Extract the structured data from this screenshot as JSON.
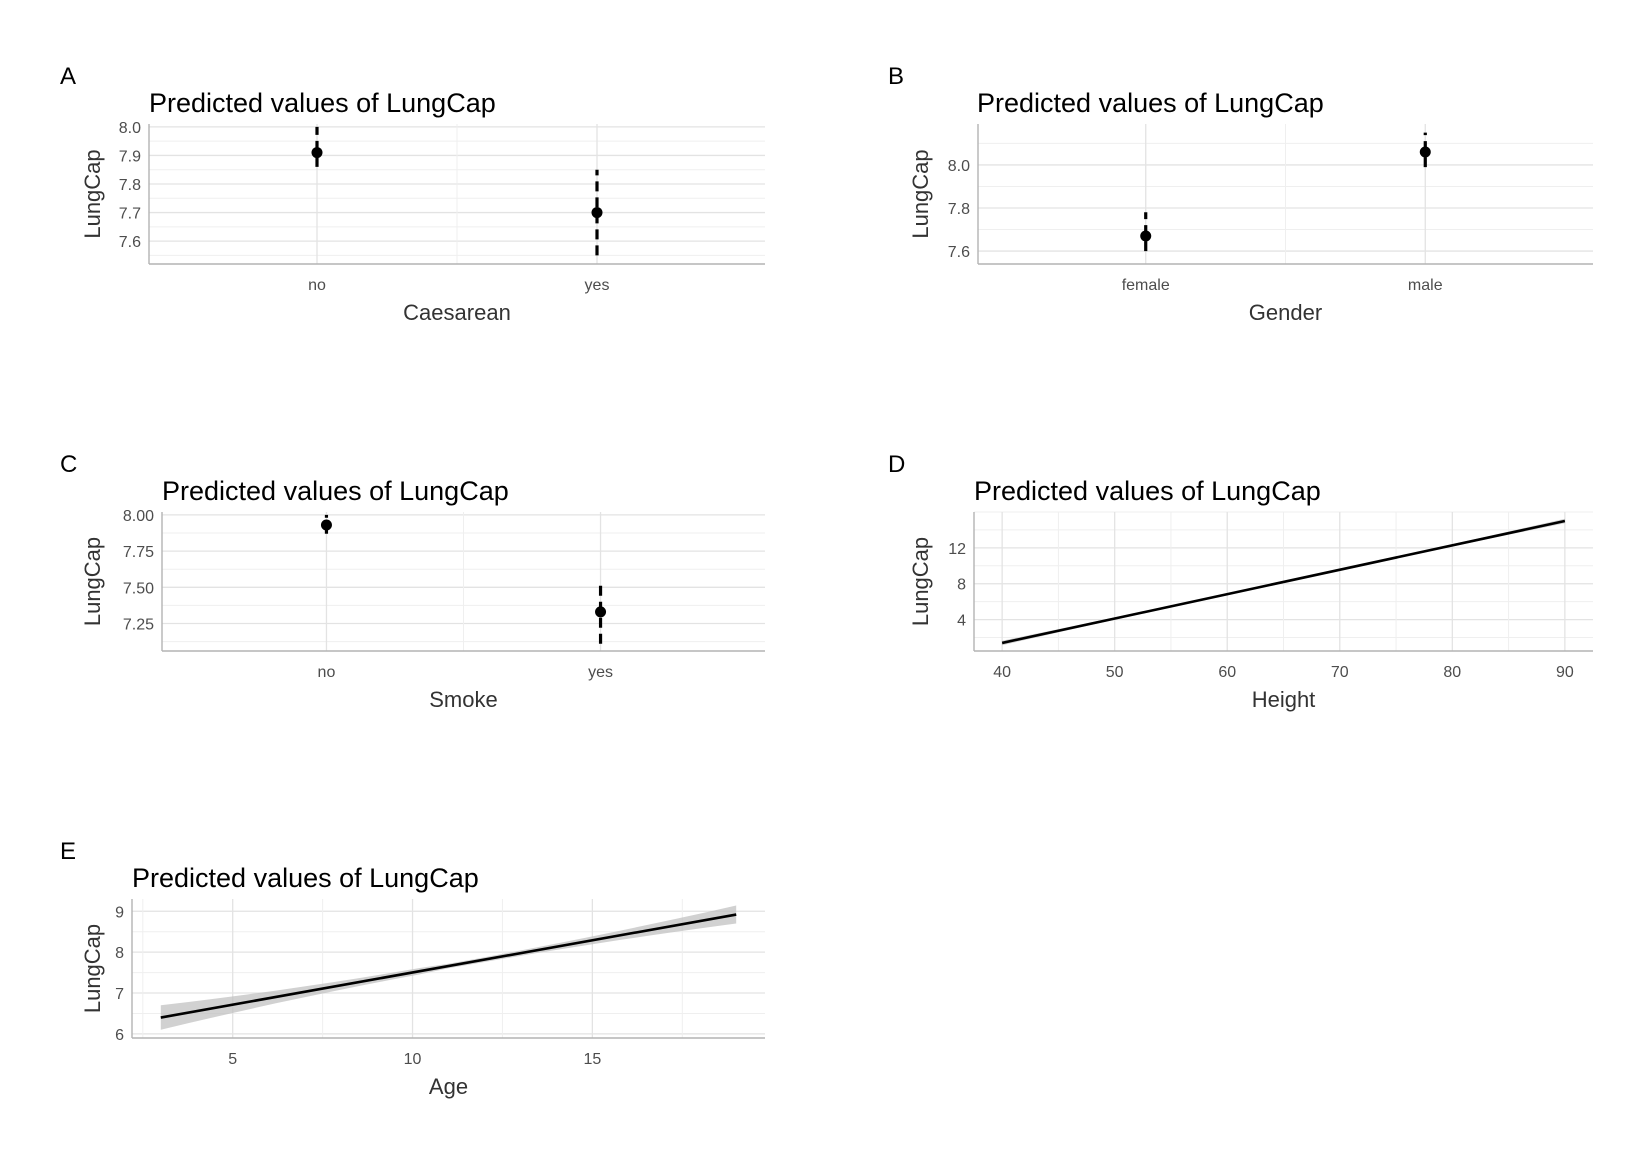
{
  "chart_data": [
    {
      "tag": "A",
      "type": "scatter",
      "title": "Predicted values of LungCap",
      "xlabel": "Caesarean",
      "ylabel": "LungCap",
      "categories": [
        "no",
        "yes"
      ],
      "values": [
        7.91,
        7.7
      ],
      "ci_low": [
        7.86,
        7.55
      ],
      "ci_high": [
        8.0,
        7.85
      ],
      "yticks": [
        "8.0",
        "7.9",
        "7.8",
        "7.7",
        "7.6"
      ],
      "ytick_values": [
        8.0,
        7.9,
        7.8,
        7.7,
        7.6
      ],
      "ylim": [
        7.52,
        8.01
      ],
      "grid": true
    },
    {
      "tag": "B",
      "type": "scatter",
      "title": "Predicted values of LungCap",
      "xlabel": "Gender",
      "ylabel": "LungCap",
      "categories": [
        "female",
        "male"
      ],
      "values": [
        7.67,
        8.06
      ],
      "ci_low": [
        7.6,
        7.99
      ],
      "ci_high": [
        7.78,
        8.15
      ],
      "yticks": [
        "8.0",
        "7.8",
        "7.6"
      ],
      "ytick_values": [
        8.0,
        7.8,
        7.6
      ],
      "ylim": [
        7.54,
        8.19
      ],
      "grid": true
    },
    {
      "tag": "C",
      "type": "scatter",
      "title": "Predicted values of LungCap",
      "xlabel": "Smoke",
      "ylabel": "LungCap",
      "categories": [
        "no",
        "yes"
      ],
      "values": [
        7.93,
        7.33
      ],
      "ci_low": [
        7.87,
        7.11
      ],
      "ci_high": [
        8.0,
        7.55
      ],
      "yticks": [
        "8.00",
        "7.75",
        "7.50",
        "7.25"
      ],
      "ytick_values": [
        8.0,
        7.75,
        7.5,
        7.25
      ],
      "ylim": [
        7.06,
        8.02
      ],
      "grid": true
    },
    {
      "tag": "D",
      "type": "line",
      "title": "Predicted values of LungCap",
      "xlabel": "Height",
      "ylabel": "LungCap",
      "x": [
        40,
        90
      ],
      "values": [
        1.4,
        15.0
      ],
      "band_half_width": [
        0.25,
        0.25
      ],
      "xticks": [
        "40",
        "50",
        "60",
        "70",
        "80",
        "90"
      ],
      "xtick_values": [
        40,
        50,
        60,
        70,
        80,
        90
      ],
      "yticks": [
        "12",
        "8",
        "4"
      ],
      "ytick_values": [
        12,
        8,
        4
      ],
      "xlim": [
        37.5,
        92.5
      ],
      "ylim": [
        0.5,
        16.0
      ],
      "grid": true
    },
    {
      "tag": "E",
      "type": "line",
      "title": "Predicted values of LungCap",
      "xlabel": "Age",
      "ylabel": "LungCap",
      "x": [
        3,
        19
      ],
      "values": [
        6.4,
        8.92
      ],
      "band_half_width": [
        0.3,
        0.22
      ],
      "xticks": [
        "5",
        "10",
        "15"
      ],
      "xtick_values": [
        5,
        10,
        15
      ],
      "yticks": [
        "9",
        "8",
        "7",
        "6"
      ],
      "ytick_values": [
        9,
        8,
        7,
        6
      ],
      "xlim": [
        2.2,
        19.8
      ],
      "ylim": [
        5.9,
        9.3
      ],
      "grid": true
    }
  ]
}
